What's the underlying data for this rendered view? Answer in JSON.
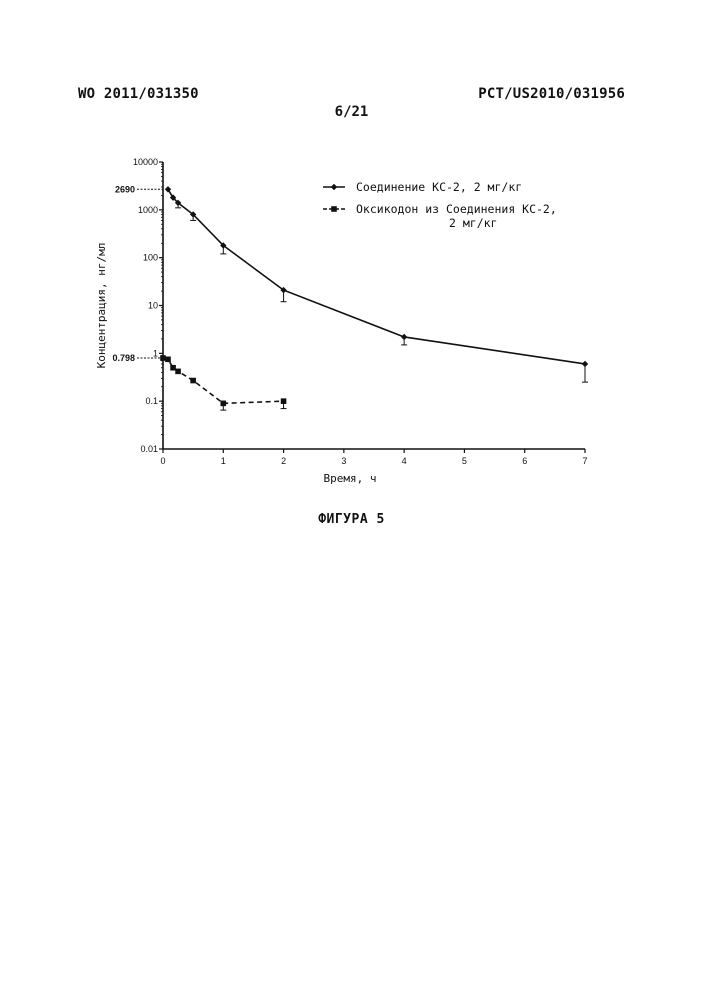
{
  "header": {
    "doc_number": "WO 2011/031350",
    "app_number": "PCT/US2010/031956",
    "page": "6/21"
  },
  "caption": "ФИГУРА 5",
  "chart_data": {
    "type": "line",
    "xlabel": "Время, ч",
    "ylabel": "Концентрация, нг/мл",
    "xlim": [
      0,
      7
    ],
    "ylim": [
      0.01,
      10000
    ],
    "yscale": "log",
    "x_ticks": [
      "0",
      "1",
      "2",
      "3",
      "4",
      "5",
      "6",
      "7"
    ],
    "y_ticks": [
      "0.01",
      "0.1",
      "1",
      "10",
      "100",
      "1000",
      "10000"
    ],
    "legend_position": "top-right",
    "annotations": [
      {
        "label": "2690",
        "y": 2690
      },
      {
        "label": "0.798",
        "y": 0.798
      }
    ],
    "series": [
      {
        "name": "Соединение КС-2, 2 мг/кг",
        "line_style": "solid",
        "marker": "diamond",
        "x": [
          0.083,
          0.167,
          0.25,
          0.5,
          1,
          2,
          4,
          7
        ],
        "y": [
          2690,
          1800,
          1400,
          800,
          180,
          21,
          2.2,
          0.6
        ],
        "error_low": [
          0,
          0,
          1100,
          600,
          120,
          12,
          1.5,
          0.25
        ]
      },
      {
        "name": "Оксикодон из Соединения КС-2, 2 мг/кг",
        "line_style": "dashed",
        "marker": "square",
        "x": [
          0,
          0.083,
          0.167,
          0.25,
          0.5,
          1,
          2
        ],
        "y": [
          0.798,
          0.75,
          0.5,
          0.42,
          0.27,
          0.09,
          0.1
        ],
        "error_low": [
          0,
          0,
          0,
          0,
          0,
          0.065,
          0.07
        ]
      }
    ]
  }
}
